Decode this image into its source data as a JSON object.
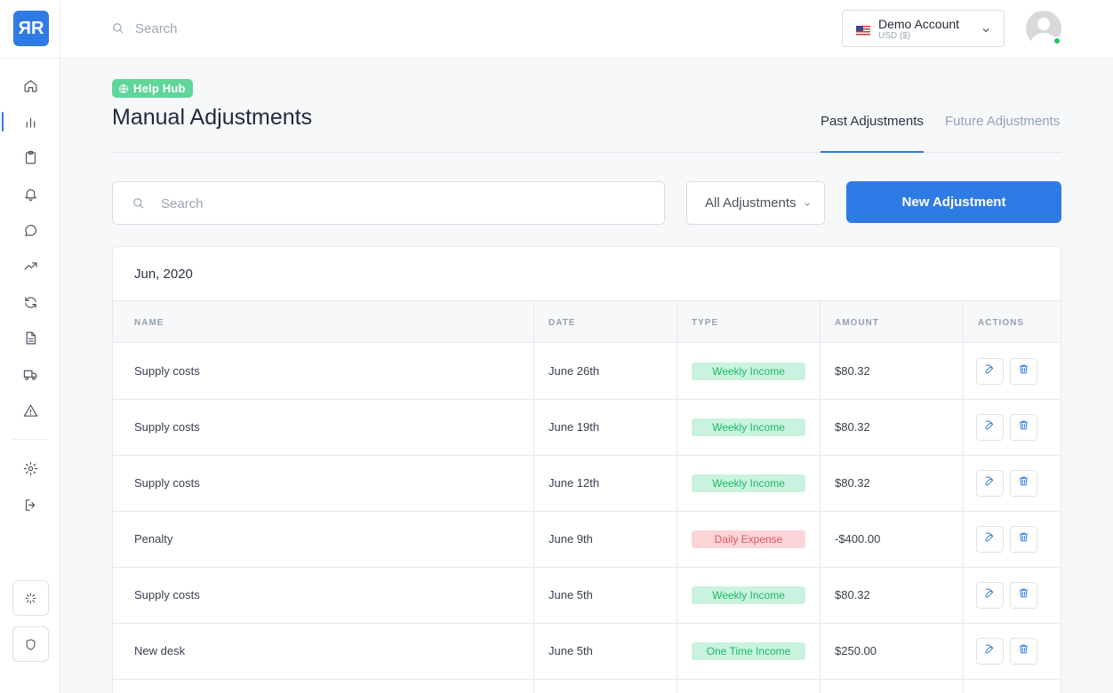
{
  "app": {
    "logo_text": "ЯR"
  },
  "topbar": {
    "search_placeholder": "Search",
    "account_name": "Demo Account",
    "account_currency": "USD ($)"
  },
  "header": {
    "help_hub_label": "Help Hub",
    "title": "Manual Adjustments",
    "tabs": [
      {
        "label": "Past Adjustments",
        "active": true
      },
      {
        "label": "Future Adjustments",
        "active": false
      }
    ]
  },
  "controls": {
    "search_placeholder": "Search",
    "filter_value": "All Adjustments",
    "new_button_label": "New Adjustment"
  },
  "table": {
    "month_label": "Jun, 2020",
    "columns": [
      "NAME",
      "DATE",
      "TYPE",
      "AMOUNT",
      "ACTIONS"
    ],
    "rows": [
      {
        "name": "Supply costs",
        "date": "June 26th",
        "type": "Weekly Income",
        "kind": "income",
        "amount": "$80.32"
      },
      {
        "name": "Supply costs",
        "date": "June 19th",
        "type": "Weekly Income",
        "kind": "income",
        "amount": "$80.32"
      },
      {
        "name": "Supply costs",
        "date": "June 12th",
        "type": "Weekly Income",
        "kind": "income",
        "amount": "$80.32"
      },
      {
        "name": "Penalty",
        "date": "June 9th",
        "type": "Daily Expense",
        "kind": "expense",
        "amount": "-$400.00"
      },
      {
        "name": "Supply costs",
        "date": "June 5th",
        "type": "Weekly Income",
        "kind": "income",
        "amount": "$80.32"
      },
      {
        "name": "New desk",
        "date": "June 5th",
        "type": "One Time Income",
        "kind": "income",
        "amount": "$250.00"
      }
    ]
  },
  "colors": {
    "accent": "#2f7be5",
    "income_bg": "#c9f3de",
    "income_text": "#1fb96b",
    "expense_bg": "#fbd5d8",
    "expense_text": "#e05560",
    "help_hub": "#5fd59a",
    "online": "#22c55e"
  },
  "icons": {
    "sidebar": [
      "home-icon",
      "bar-chart-icon",
      "clipboard-icon",
      "bell-icon",
      "chat-icon",
      "trending-up-icon",
      "refresh-icon",
      "document-icon",
      "truck-icon",
      "warning-icon",
      "gear-icon",
      "logout-icon"
    ],
    "bottom": [
      "loader-icon",
      "shield-icon"
    ],
    "row_actions": [
      "edit-icon",
      "trash-icon"
    ]
  }
}
